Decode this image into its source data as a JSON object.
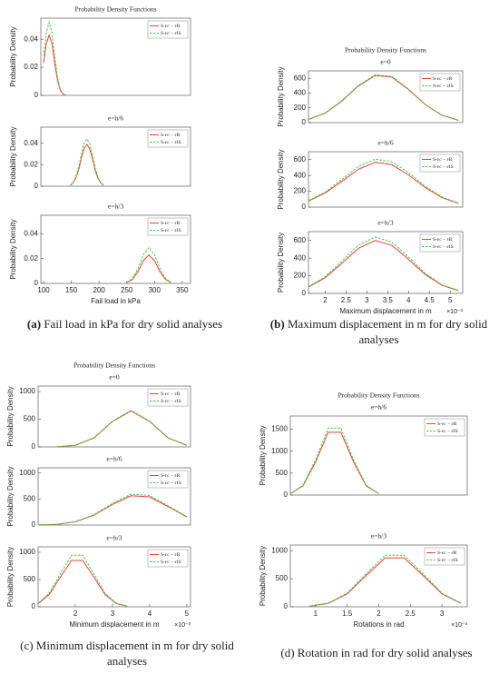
{
  "chart_data": [
    {
      "type": "line",
      "title": "Probability Density Functions",
      "ylabel": "Probability Density",
      "legend": "upper right",
      "x": [
        100,
        105,
        110,
        115,
        120,
        125,
        130,
        135,
        140
      ],
      "xlim": [
        95,
        365
      ],
      "ylim": [
        0,
        0.055
      ],
      "yticks": [
        0,
        0.02,
        0.04
      ],
      "series": [
        {
          "name": "S-εc − εR",
          "color": "#e8413a",
          "dash": false,
          "values": [
            0.023,
            0.037,
            0.043,
            0.037,
            0.023,
            0.011,
            0.0037,
            0.0009,
            0.0002
          ]
        },
        {
          "name": "S-εc − εIS",
          "color": "#3fcc3f",
          "dash": true,
          "values": [
            0.028,
            0.045,
            0.052,
            0.045,
            0.028,
            0.013,
            0.0044,
            0.0011,
            0.0002
          ]
        }
      ]
    },
    {
      "type": "line",
      "subtitle": "e=h/6",
      "ylabel": "Probability Density",
      "legend": "upper right",
      "x": [
        148,
        153,
        158,
        163,
        168,
        173,
        178,
        183,
        188,
        193,
        198,
        203,
        208
      ],
      "xlim": [
        95,
        365
      ],
      "ylim": [
        0,
        0.055
      ],
      "yticks": [
        0,
        0.02,
        0.04
      ],
      "series": [
        {
          "name": "S-εc − εR",
          "color": "#e8413a",
          "dash": false,
          "values": [
            0.0009,
            0.003,
            0.0075,
            0.015,
            0.026,
            0.035,
            0.039,
            0.035,
            0.026,
            0.015,
            0.0075,
            0.003,
            0.0009
          ]
        },
        {
          "name": "S-εc − εIS",
          "color": "#3fcc3f",
          "dash": true,
          "values": [
            0.0011,
            0.0033,
            0.0084,
            0.017,
            0.029,
            0.04,
            0.044,
            0.04,
            0.029,
            0.017,
            0.0084,
            0.0033,
            0.0011
          ]
        }
      ]
    },
    {
      "type": "line",
      "subtitle": "e=h/3",
      "ylabel": "Probability Density",
      "xlabel": "Fail load in kPa",
      "legend": "upper right",
      "x": [
        250,
        260,
        270,
        280,
        290,
        300,
        310,
        320,
        330
      ],
      "xlim": [
        95,
        365
      ],
      "xticks": [
        100,
        150,
        200,
        250,
        300,
        350
      ],
      "ylim": [
        0,
        0.055
      ],
      "yticks": [
        0,
        0.02,
        0.04
      ],
      "series": [
        {
          "name": "S-εc − εR",
          "color": "#e8413a",
          "dash": false,
          "values": [
            0.0007,
            0.0031,
            0.0094,
            0.0184,
            0.023,
            0.0184,
            0.0094,
            0.0031,
            0.0007
          ]
        },
        {
          "name": "S-εc − εIS",
          "color": "#3fcc3f",
          "dash": true,
          "values": [
            0.0008,
            0.0039,
            0.0119,
            0.0232,
            0.029,
            0.0232,
            0.0119,
            0.0039,
            0.0008
          ]
        }
      ]
    },
    {
      "type": "line",
      "title": "Probability Density Functions",
      "subtitle": "e=0",
      "ylabel": "Probability Density",
      "legend": "upper right",
      "x": [
        1.6,
        2.0,
        2.4,
        2.8,
        3.2,
        3.6,
        4.0,
        4.4,
        4.8,
        5.2
      ],
      "xlim": [
        1.6,
        5.3
      ],
      "ylim": [
        0,
        700
      ],
      "yticks": [
        0,
        200,
        400,
        600
      ],
      "series": [
        {
          "name": "S-εc − εR",
          "color": "#e8413a",
          "dash": false,
          "values": [
            43,
            129,
            291,
            497,
            637,
            615,
            447,
            244,
            100,
            31
          ]
        },
        {
          "name": "S-εc − εIS",
          "color": "#3fcc3f",
          "dash": true,
          "values": [
            44,
            131,
            296,
            504,
            647,
            624,
            453,
            248,
            102,
            32
          ]
        }
      ]
    },
    {
      "type": "line",
      "subtitle": "e=h/6",
      "ylabel": "Probability Density",
      "legend": "upper right",
      "x": [
        1.6,
        2.0,
        2.4,
        2.8,
        3.2,
        3.6,
        4.0,
        4.4,
        4.8,
        5.2
      ],
      "xlim": [
        1.6,
        5.3
      ],
      "ylim": [
        0,
        700
      ],
      "yticks": [
        0,
        200,
        400,
        600
      ],
      "series": [
        {
          "name": "S-εc − εR",
          "color": "#e8413a",
          "dash": false,
          "values": [
            77,
            177,
            325,
            479,
            566,
            536,
            406,
            247,
            120,
            47
          ]
        },
        {
          "name": "S-εc − εIS",
          "color": "#3fcc3f",
          "dash": true,
          "values": [
            82,
            189,
            348,
            513,
            606,
            573,
            434,
            264,
            129,
            50
          ]
        }
      ]
    },
    {
      "type": "line",
      "subtitle": "e=h/3",
      "ylabel": "Probability Density",
      "xlabel": "Maximum displacement in m",
      "x_exponent": "×10⁻³",
      "legend": "upper right",
      "x": [
        1.6,
        2.0,
        2.4,
        2.8,
        3.2,
        3.6,
        4.0,
        4.4,
        4.8,
        5.2
      ],
      "xlim": [
        1.6,
        5.3
      ],
      "xticks": [
        2,
        2.5,
        3,
        3.5,
        4,
        4.5,
        5
      ],
      "ylim": [
        0,
        700
      ],
      "yticks": [
        0,
        200,
        400,
        600
      ],
      "series": [
        {
          "name": "S-εc − εR",
          "color": "#e8413a",
          "dash": false,
          "values": [
            71,
            177,
            341,
            512,
            599,
            545,
            386,
            214,
            92,
            31
          ]
        },
        {
          "name": "S-εc − εIS",
          "color": "#3fcc3f",
          "dash": true,
          "values": [
            76,
            189,
            364,
            547,
            639,
            582,
            412,
            228,
            98,
            33
          ]
        }
      ]
    },
    {
      "type": "line",
      "title": "Probability Density Functions",
      "subtitle": "e=0",
      "ylabel": "Probability Density",
      "legend": "upper right",
      "x": [
        1.5,
        2.0,
        2.5,
        3.0,
        3.5,
        4.0,
        4.5,
        5.0
      ],
      "xlim": [
        1.0,
        5.1
      ],
      "ylim": [
        0,
        1100
      ],
      "yticks": [
        0,
        500,
        1000
      ],
      "series": [
        {
          "name": "S-εc − εR",
          "color": "#e8413a",
          "dash": false,
          "values": [
            3,
            29,
            162,
            460,
            650,
            460,
            162,
            29
          ]
        },
        {
          "name": "S-εc − εIS",
          "color": "#3fcc3f",
          "dash": true,
          "values": [
            3,
            29,
            164,
            467,
            660,
            467,
            164,
            29
          ]
        }
      ]
    },
    {
      "type": "line",
      "subtitle": "e=h/6",
      "ylabel": "Probability Density",
      "legend": "upper right",
      "x": [
        1.0,
        1.5,
        2.0,
        2.5,
        3.0,
        3.5,
        4.0,
        4.5,
        5.0
      ],
      "xlim": [
        1.0,
        5.1
      ],
      "ylim": [
        0,
        1100
      ],
      "yticks": [
        0,
        500,
        1000
      ],
      "series": [
        {
          "name": "S-εc − εR",
          "color": "#e8413a",
          "dash": false,
          "values": [
            2,
            13,
            61,
            189,
            396,
            562,
            541,
            352,
            155
          ]
        },
        {
          "name": "S-εc − εIS",
          "color": "#3fcc3f",
          "dash": true,
          "values": [
            2,
            14,
            64,
            198,
            416,
            591,
            569,
            370,
            163
          ]
        }
      ]
    },
    {
      "type": "line",
      "subtitle": "e=h/3",
      "ylabel": "Probability Density",
      "xlabel": "Minimum displacement in m",
      "x_exponent": "×10⁻³",
      "legend": "upper right",
      "x": [
        1.0,
        1.3,
        1.6,
        1.9,
        2.2,
        2.5,
        2.8,
        3.1,
        3.4
      ],
      "xlim": [
        1.0,
        5.1
      ],
      "xticks": [
        2,
        3,
        4,
        5
      ],
      "ylim": [
        0,
        1100
      ],
      "yticks": [
        0,
        500,
        1000
      ],
      "series": [
        {
          "name": "S-εc − εR",
          "color": "#e8413a",
          "dash": false,
          "values": [
            59,
            224,
            546,
            851,
            851,
            546,
            224,
            59,
            10
          ]
        },
        {
          "name": "S-εc − εIS",
          "color": "#3fcc3f",
          "dash": true,
          "values": [
            66,
            249,
            607,
            946,
            946,
            607,
            249,
            66,
            11
          ]
        }
      ]
    },
    {
      "type": "line",
      "title": "Probability Density Functions",
      "subtitle": "e=h/6",
      "ylabel": "Probability Density",
      "legend": "upper right",
      "x": [
        0.6,
        0.8,
        1.0,
        1.2,
        1.4,
        1.6,
        1.8,
        2.0
      ],
      "xlim": [
        0.6,
        3.4
      ],
      "ylim": [
        0,
        1800
      ],
      "yticks": [
        0,
        500,
        1000,
        1500
      ],
      "series": [
        {
          "name": "S-εc − εR",
          "color": "#e8413a",
          "dash": false,
          "values": [
            31,
            209,
            755,
            1431,
            1431,
            755,
            209,
            31
          ]
        },
        {
          "name": "S-εc − εIS",
          "color": "#3fcc3f",
          "dash": true,
          "values": [
            33,
            223,
            804,
            1523,
            1523,
            804,
            223,
            33
          ]
        }
      ]
    },
    {
      "type": "line",
      "subtitle": "e=h/3",
      "ylabel": "Probability Density",
      "xlabel": "Rotations in rad",
      "x_exponent": "×10⁻³",
      "legend": "upper right",
      "x": [
        0.9,
        1.2,
        1.5,
        1.8,
        2.1,
        2.4,
        2.7,
        3.0,
        3.3
      ],
      "xlim": [
        0.6,
        3.4
      ],
      "xticks": [
        1,
        1.5,
        2,
        2.5,
        3
      ],
      "ylim": [
        0,
        1100
      ],
      "yticks": [
        0,
        500,
        1000
      ],
      "series": [
        {
          "name": "S-εc − εR",
          "color": "#e8413a",
          "dash": false,
          "values": [
            10,
            61,
            229,
            558,
            870,
            870,
            558,
            229,
            61
          ]
        },
        {
          "name": "S-εc − εIS",
          "color": "#3fcc3f",
          "dash": true,
          "values": [
            11,
            64,
            242,
            589,
            918,
            918,
            589,
            242,
            64
          ]
        }
      ]
    }
  ],
  "captions": [
    {
      "label": "(a)",
      "text": "Fail load in kPa for dry solid analyses"
    },
    {
      "label": "(b)",
      "text": "Maximum displacement in m for dry solid analyses"
    },
    {
      "label": "(c)",
      "text": "Minimum displacement in m for dry solid analyses"
    },
    {
      "label": "(d)",
      "text": "Rotation in rad for dry solid analyses"
    }
  ]
}
